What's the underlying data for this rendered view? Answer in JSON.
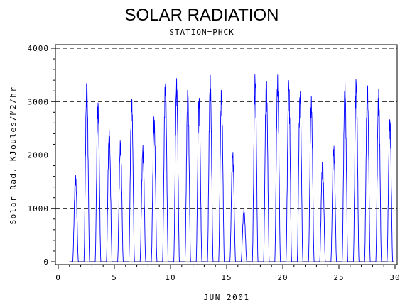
{
  "chart_data": {
    "type": "line",
    "title": "SOLAR RADIATION",
    "subtitle": "STATION=PHCK",
    "xlabel": "JUN 2001",
    "ylabel": "Solar Rad. KJoules/M2/hr",
    "xlim": [
      0,
      30
    ],
    "ylim": [
      0,
      4000
    ],
    "x_ticks": [
      0,
      5,
      10,
      15,
      20,
      25,
      30
    ],
    "y_ticks": [
      0,
      1000,
      2000,
      3000,
      4000
    ],
    "grid": "horizontal dashed at y ticks",
    "legend": "none",
    "series": [
      {
        "color": "#0000ff",
        "daily_peaks": [
          {
            "day": 1,
            "peak": 1650
          },
          {
            "day": 2,
            "peak": 3400
          },
          {
            "day": 3,
            "peak": 3050
          },
          {
            "day": 4,
            "peak": 2500
          },
          {
            "day": 5,
            "peak": 2300
          },
          {
            "day": 6,
            "peak": 3150
          },
          {
            "day": 7,
            "peak": 2200
          },
          {
            "day": 8,
            "peak": 2750
          },
          {
            "day": 9,
            "peak": 3450
          },
          {
            "day": 10,
            "peak": 3450
          },
          {
            "day": 11,
            "peak": 3250
          },
          {
            "day": 12,
            "peak": 3150
          },
          {
            "day": 13,
            "peak": 3500
          },
          {
            "day": 14,
            "peak": 3250
          },
          {
            "day": 15,
            "peak": 2100
          },
          {
            "day": 16,
            "peak": 1000
          },
          {
            "day": 17,
            "peak": 3550
          },
          {
            "day": 18,
            "peak": 3450
          },
          {
            "day": 19,
            "peak": 3500
          },
          {
            "day": 20,
            "peak": 3450
          },
          {
            "day": 21,
            "peak": 3250
          },
          {
            "day": 22,
            "peak": 3100
          },
          {
            "day": 23,
            "peak": 1900
          },
          {
            "day": 24,
            "peak": 2200
          },
          {
            "day": 25,
            "peak": 3400
          },
          {
            "day": 26,
            "peak": 3500
          },
          {
            "day": 27,
            "peak": 3350
          },
          {
            "day": 28,
            "peak": 3250
          },
          {
            "day": 29,
            "peak": 2750
          }
        ]
      }
    ],
    "colors": {
      "axes": "#000000",
      "grid": "#000000",
      "line": "#0000ff",
      "background": "#ffffff"
    }
  }
}
